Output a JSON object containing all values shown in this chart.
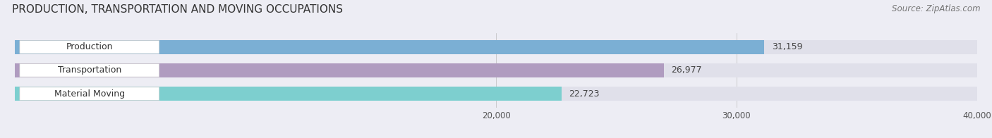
{
  "title": "PRODUCTION, TRANSPORTATION AND MOVING OCCUPATIONS",
  "source_text": "Source: ZipAtlas.com",
  "categories": [
    "Production",
    "Transportation",
    "Material Moving"
  ],
  "values": [
    31159,
    26977,
    22723
  ],
  "bar_colors": [
    "#7bafd4",
    "#b09cc0",
    "#7dcfcf"
  ],
  "label_values": [
    "31,159",
    "26,977",
    "22,723"
  ],
  "xlim": [
    0,
    40000
  ],
  "xticks": [
    20000,
    30000,
    40000
  ],
  "xtick_labels": [
    "20,000",
    "30,000",
    "40,000"
  ],
  "bar_height": 0.6,
  "background_color": "#ededf4",
  "bar_background_color": "#e0e0ea",
  "title_fontsize": 11,
  "label_fontsize": 9,
  "source_fontsize": 8.5,
  "tick_fontsize": 8.5
}
